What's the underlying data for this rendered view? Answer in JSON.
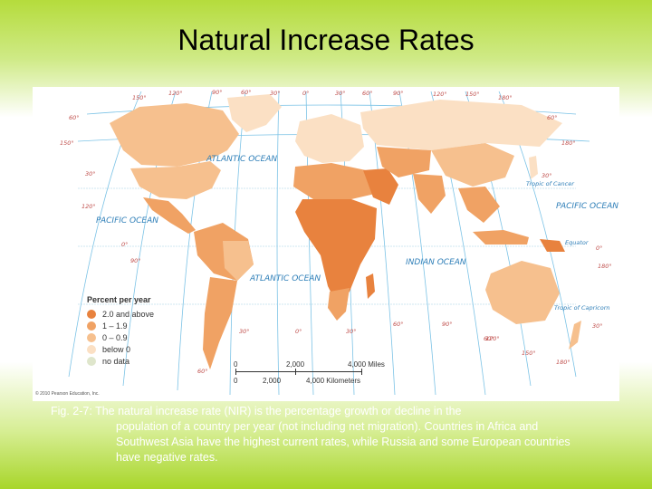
{
  "slide": {
    "title": "Natural Increase Rates"
  },
  "map": {
    "oceans": {
      "atlantic_north": "ATLANTIC OCEAN",
      "atlantic_south": "ATLANTIC OCEAN",
      "pacific_west": "PACIFIC OCEAN",
      "pacific_east": "PACIFIC OCEAN",
      "indian": "INDIAN OCEAN"
    },
    "lines": {
      "tropic_cancer": "Tropic of Cancer",
      "equator": "Equator",
      "tropic_capricorn": "Tropic of Capricorn"
    },
    "degree_labels": [
      "150°",
      "120°",
      "90°",
      "60°",
      "30°",
      "0°",
      "30°",
      "60°",
      "90°",
      "120°",
      "150°",
      "180°",
      "60°",
      "150°",
      "30°",
      "120°",
      "0°",
      "90°",
      "60°",
      "30°",
      "0°",
      "30°",
      "60°",
      "90°",
      "30°",
      "60°",
      "180°",
      "30°",
      "0°",
      "180°",
      "60°",
      "150°",
      "120°",
      "180°"
    ],
    "legend": {
      "title": "Percent per year",
      "items": [
        {
          "label": "2.0 and above",
          "color": "#e8823e"
        },
        {
          "label": "1 – 1.9",
          "color": "#f0a264"
        },
        {
          "label": "0 – 0.9",
          "color": "#f6c08e"
        },
        {
          "label": "below 0",
          "color": "#fbe0c4"
        },
        {
          "label": "no data",
          "color": "#dfe6cc"
        }
      ]
    },
    "scale": {
      "miles": [
        "0",
        "2,000",
        "4,000 Miles"
      ],
      "km": [
        "0",
        "2,000",
        "4,000 Kilometers"
      ]
    },
    "copyright": "© 2010 Pearson Education, Inc."
  },
  "caption": {
    "lead": "Fig. 2-7:  The natural increase rate (NIR) is the percentage growth or decline in the",
    "rest": "population of a country per year (not including net migration).  Countries in Africa and Southwest Asia have the highest current rates, while Russia and some European countries have negative rates."
  }
}
